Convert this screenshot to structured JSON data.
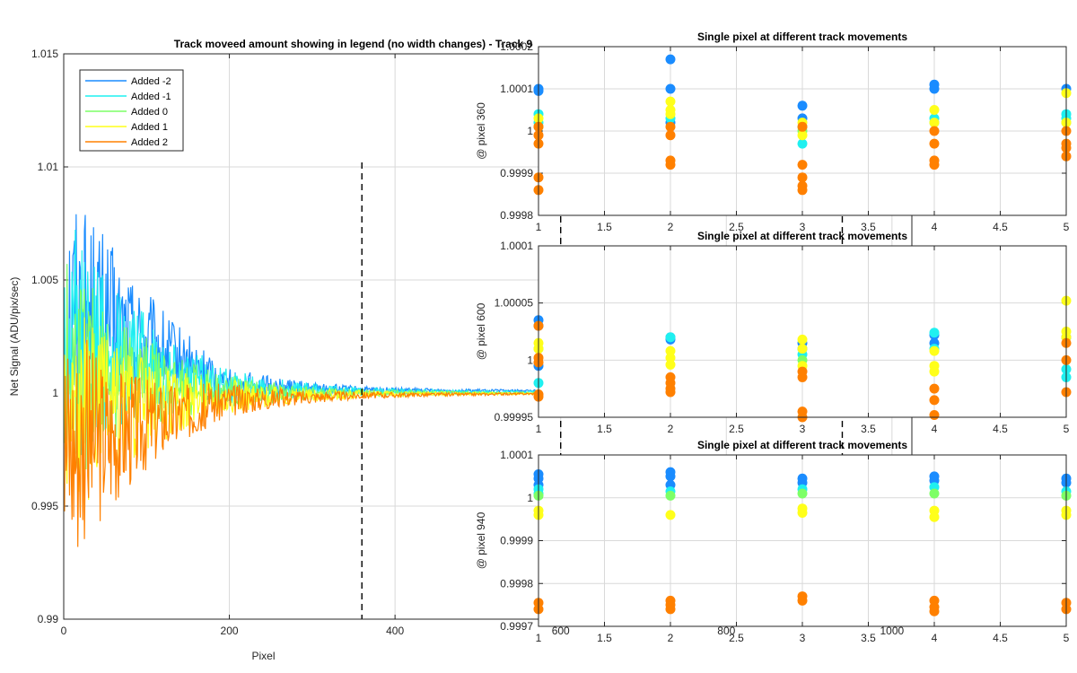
{
  "colors": {
    "added_m2": "#1a8cff",
    "added_m1": "#1ff0f0",
    "added_0": "#7dff66",
    "added_1": "#ffff1a",
    "added_2": "#ff8000",
    "grid": "#d9d9d9",
    "dash": "#000000"
  },
  "chart_data": [
    {
      "type": "line",
      "title": "Track moveed amount showing in legend (no width changes) - Track 9",
      "xlabel": "Pixel",
      "ylabel": "Net Signal (ADU/pix/sec)",
      "xlim": [
        0,
        1024
      ],
      "ylim": [
        0.99,
        1.015
      ],
      "xticks": [
        0,
        200,
        400,
        600,
        800,
        1000
      ],
      "yticks": [
        0.99,
        0.995,
        1,
        1.005,
        1.01,
        1.015
      ],
      "ytick_labels": [
        "0.99",
        "0.995",
        "1",
        "1.005",
        "1.01",
        "1.015"
      ],
      "grid": true,
      "legend_position": "top-left",
      "vertical_dashed_lines_x": [
        360,
        600,
        940
      ],
      "series": [
        {
          "name": "Added -2",
          "color_key": "added_m2",
          "noise_start": 0.0065,
          "decay": 95,
          "tail": [
            [
              30,
              0.0035
            ],
            [
              200,
              0.0003
            ],
            [
              360,
              0.00012
            ],
            [
              600,
              0.0001
            ],
            [
              860,
              5e-05
            ],
            [
              940,
              4e-05
            ],
            [
              1000,
              0.0
            ],
            [
              1024,
              -0.0001
            ]
          ]
        },
        {
          "name": "Added -1",
          "color_key": "added_m1",
          "noise_start": 0.006,
          "decay": 100,
          "tail": [
            [
              30,
              0.002
            ],
            [
              200,
              0.0002
            ],
            [
              360,
              6e-05
            ],
            [
              600,
              5e-05
            ],
            [
              860,
              3e-05
            ],
            [
              940,
              2e-05
            ],
            [
              1000,
              0.0
            ],
            [
              1024,
              0.0
            ]
          ]
        },
        {
          "name": "Added 0",
          "color_key": "added_0",
          "noise_start": 0.0055,
          "decay": 100,
          "tail": [
            [
              30,
              0.0008
            ],
            [
              200,
              0.0
            ],
            [
              360,
              0.0
            ],
            [
              600,
              0.0
            ],
            [
              860,
              0.0
            ],
            [
              940,
              0.0
            ],
            [
              1000,
              0.0
            ],
            [
              1024,
              0.0
            ]
          ]
        },
        {
          "name": "Added 1",
          "color_key": "added_1",
          "noise_start": 0.0055,
          "decay": 100,
          "tail": [
            [
              30,
              -0.0008
            ],
            [
              200,
              -0.00015
            ],
            [
              360,
              -5e-05
            ],
            [
              600,
              -1e-05
            ],
            [
              860,
              -0.0001
            ],
            [
              940,
              -0.0002
            ],
            [
              1000,
              -0.0001
            ],
            [
              1024,
              0.0
            ]
          ]
        },
        {
          "name": "Added 2",
          "color_key": "added_2",
          "noise_start": 0.006,
          "decay": 95,
          "tail": [
            [
              30,
              -0.002
            ],
            [
              200,
              -0.0003
            ],
            [
              360,
              -0.0001
            ],
            [
              600,
              -2e-05
            ],
            [
              860,
              -0.00018
            ],
            [
              940,
              -0.00035
            ],
            [
              1000,
              -0.0002
            ],
            [
              1024,
              0.0002
            ]
          ]
        }
      ]
    },
    {
      "type": "scatter",
      "title": "Single pixel at different track movements",
      "ylabel": "@ pixel 360",
      "xlim": [
        1,
        5
      ],
      "ylim": [
        0.9998,
        1.0002
      ],
      "xticks": [
        1,
        1.5,
        2,
        2.5,
        3,
        3.5,
        4,
        4.5,
        5
      ],
      "yticks": [
        0.9998,
        0.9999,
        1,
        1.0001,
        1.0002
      ],
      "ytick_labels": [
        "0.9998",
        "0.9999",
        "1",
        "1.0001",
        "1.0002"
      ],
      "grid": true,
      "points": [
        {
          "x": 1,
          "y": 1.0001,
          "c": "added_m2"
        },
        {
          "x": 1,
          "y": 1.000095,
          "c": "added_m2"
        },
        {
          "x": 1,
          "y": 1.00004,
          "c": "added_m1"
        },
        {
          "x": 1,
          "y": 1.00002,
          "c": "added_m1"
        },
        {
          "x": 1,
          "y": 1.00001,
          "c": "added_0"
        },
        {
          "x": 1,
          "y": 1.00003,
          "c": "added_1"
        },
        {
          "x": 1,
          "y": 1.00001,
          "c": "added_2"
        },
        {
          "x": 1,
          "y": 0.99999,
          "c": "added_2"
        },
        {
          "x": 1,
          "y": 0.99997,
          "c": "added_2"
        },
        {
          "x": 1,
          "y": 0.99989,
          "c": "added_2"
        },
        {
          "x": 1,
          "y": 0.99986,
          "c": "added_2"
        },
        {
          "x": 2,
          "y": 1.00017,
          "c": "added_m2"
        },
        {
          "x": 2,
          "y": 1.0001,
          "c": "added_m2"
        },
        {
          "x": 2,
          "y": 1.00002,
          "c": "added_m2"
        },
        {
          "x": 2,
          "y": 1.00003,
          "c": "added_m1"
        },
        {
          "x": 2,
          "y": 1.00005,
          "c": "added_1"
        },
        {
          "x": 2,
          "y": 1.00007,
          "c": "added_1"
        },
        {
          "x": 2,
          "y": 1.00004,
          "c": "added_1"
        },
        {
          "x": 2,
          "y": 1.00001,
          "c": "added_2"
        },
        {
          "x": 2,
          "y": 0.99999,
          "c": "added_2"
        },
        {
          "x": 2,
          "y": 0.99993,
          "c": "added_2"
        },
        {
          "x": 2,
          "y": 0.99992,
          "c": "added_2"
        },
        {
          "x": 3,
          "y": 1.00006,
          "c": "added_m2"
        },
        {
          "x": 3,
          "y": 1.00003,
          "c": "added_m2"
        },
        {
          "x": 3,
          "y": 1.00001,
          "c": "added_m1"
        },
        {
          "x": 3,
          "y": 0.99997,
          "c": "added_m1"
        },
        {
          "x": 3,
          "y": 1.0,
          "c": "added_0"
        },
        {
          "x": 3,
          "y": 0.99999,
          "c": "added_1"
        },
        {
          "x": 3,
          "y": 1.00002,
          "c": "added_1"
        },
        {
          "x": 3,
          "y": 1.00001,
          "c": "added_2"
        },
        {
          "x": 3,
          "y": 0.99992,
          "c": "added_2"
        },
        {
          "x": 3,
          "y": 0.99989,
          "c": "added_2"
        },
        {
          "x": 3,
          "y": 0.99987,
          "c": "added_2"
        },
        {
          "x": 3,
          "y": 0.99986,
          "c": "added_2"
        },
        {
          "x": 4,
          "y": 1.00011,
          "c": "added_m2"
        },
        {
          "x": 4,
          "y": 1.0001,
          "c": "added_m2"
        },
        {
          "x": 4,
          "y": 1.00003,
          "c": "added_m1"
        },
        {
          "x": 4,
          "y": 1.00002,
          "c": "added_m1"
        },
        {
          "x": 4,
          "y": 1.00005,
          "c": "added_1"
        },
        {
          "x": 4,
          "y": 1.00002,
          "c": "added_1"
        },
        {
          "x": 4,
          "y": 1.0,
          "c": "added_2"
        },
        {
          "x": 4,
          "y": 0.99997,
          "c": "added_2"
        },
        {
          "x": 4,
          "y": 0.99993,
          "c": "added_2"
        },
        {
          "x": 4,
          "y": 0.99992,
          "c": "added_2"
        },
        {
          "x": 5,
          "y": 1.0001,
          "c": "added_m2"
        },
        {
          "x": 5,
          "y": 1.00004,
          "c": "added_m1"
        },
        {
          "x": 5,
          "y": 1.00003,
          "c": "added_m1"
        },
        {
          "x": 5,
          "y": 1.00002,
          "c": "added_0"
        },
        {
          "x": 5,
          "y": 1.00009,
          "c": "added_1"
        },
        {
          "x": 5,
          "y": 1.00002,
          "c": "added_1"
        },
        {
          "x": 5,
          "y": 1.0,
          "c": "added_2"
        },
        {
          "x": 5,
          "y": 0.99997,
          "c": "added_2"
        },
        {
          "x": 5,
          "y": 0.99996,
          "c": "added_2"
        },
        {
          "x": 5,
          "y": 0.99994,
          "c": "added_2"
        }
      ]
    },
    {
      "type": "scatter",
      "title": "Single pixel at different track movements",
      "ylabel": "@ pixel 600",
      "xlim": [
        1,
        5
      ],
      "ylim": [
        0.99995,
        1.0001
      ],
      "xticks": [
        1,
        1.5,
        2,
        2.5,
        3,
        3.5,
        4,
        4.5,
        5
      ],
      "yticks": [
        0.99995,
        1,
        1.00005,
        1.0001
      ],
      "ytick_labels": [
        "0.99995",
        "1",
        "1.00005",
        "1.0001"
      ],
      "grid": true,
      "points": [
        {
          "x": 1,
          "y": 1.000035,
          "c": "added_m2"
        },
        {
          "x": 1,
          "y": 1.00003,
          "c": "added_m2"
        },
        {
          "x": 1,
          "y": 0.999995,
          "c": "added_m2"
        },
        {
          "x": 1,
          "y": 0.99998,
          "c": "added_m1"
        },
        {
          "x": 1,
          "y": 1.00001,
          "c": "added_0"
        },
        {
          "x": 1,
          "y": 1.000015,
          "c": "added_1"
        },
        {
          "x": 1,
          "y": 1.00001,
          "c": "added_1"
        },
        {
          "x": 1,
          "y": 1.00003,
          "c": "added_2"
        },
        {
          "x": 1,
          "y": 1.000002,
          "c": "added_2"
        },
        {
          "x": 1,
          "y": 0.999998,
          "c": "added_2"
        },
        {
          "x": 1,
          "y": 0.99997,
          "c": "added_2"
        },
        {
          "x": 1,
          "y": 0.999968,
          "c": "added_2"
        },
        {
          "x": 2,
          "y": 1.00002,
          "c": "added_m2"
        },
        {
          "x": 2,
          "y": 1.000018,
          "c": "added_m2"
        },
        {
          "x": 2,
          "y": 1.00002,
          "c": "added_m1"
        },
        {
          "x": 2,
          "y": 1.000008,
          "c": "added_1"
        },
        {
          "x": 2,
          "y": 1.000002,
          "c": "added_1"
        },
        {
          "x": 2,
          "y": 0.999996,
          "c": "added_1"
        },
        {
          "x": 2,
          "y": 0.999985,
          "c": "added_2"
        },
        {
          "x": 2,
          "y": 0.99998,
          "c": "added_2"
        },
        {
          "x": 2,
          "y": 0.999975,
          "c": "added_2"
        },
        {
          "x": 2,
          "y": 0.999972,
          "c": "added_2"
        },
        {
          "x": 3,
          "y": 1.000015,
          "c": "added_m2"
        },
        {
          "x": 3,
          "y": 1.00001,
          "c": "added_m2"
        },
        {
          "x": 3,
          "y": 1.000005,
          "c": "added_m1"
        },
        {
          "x": 3,
          "y": 1.0,
          "c": "added_0"
        },
        {
          "x": 3,
          "y": 1.000018,
          "c": "added_1"
        },
        {
          "x": 3,
          "y": 1.00001,
          "c": "added_1"
        },
        {
          "x": 3,
          "y": 0.999995,
          "c": "added_1"
        },
        {
          "x": 3,
          "y": 0.99999,
          "c": "added_2"
        },
        {
          "x": 3,
          "y": 0.999985,
          "c": "added_2"
        },
        {
          "x": 3,
          "y": 0.999955,
          "c": "added_2"
        },
        {
          "x": 3,
          "y": 0.99995,
          "c": "added_2"
        },
        {
          "x": 4,
          "y": 1.000022,
          "c": "added_m2"
        },
        {
          "x": 4,
          "y": 1.000015,
          "c": "added_m2"
        },
        {
          "x": 4,
          "y": 1.000024,
          "c": "added_m1"
        },
        {
          "x": 4,
          "y": 1.00001,
          "c": "added_m1"
        },
        {
          "x": 4,
          "y": 1.000008,
          "c": "added_1"
        },
        {
          "x": 4,
          "y": 0.999995,
          "c": "added_1"
        },
        {
          "x": 4,
          "y": 0.99999,
          "c": "added_1"
        },
        {
          "x": 4,
          "y": 0.999975,
          "c": "added_2"
        },
        {
          "x": 4,
          "y": 0.999965,
          "c": "added_2"
        },
        {
          "x": 4,
          "y": 0.999952,
          "c": "added_2"
        },
        {
          "x": 5,
          "y": 1.00002,
          "c": "added_m2"
        },
        {
          "x": 5,
          "y": 0.999992,
          "c": "added_m1"
        },
        {
          "x": 5,
          "y": 0.999985,
          "c": "added_m1"
        },
        {
          "x": 5,
          "y": 1.000052,
          "c": "added_1"
        },
        {
          "x": 5,
          "y": 1.000025,
          "c": "added_1"
        },
        {
          "x": 5,
          "y": 1.00002,
          "c": "added_1"
        },
        {
          "x": 5,
          "y": 1.000015,
          "c": "added_2"
        },
        {
          "x": 5,
          "y": 1.0,
          "c": "added_2"
        },
        {
          "x": 5,
          "y": 0.999972,
          "c": "added_2"
        }
      ]
    },
    {
      "type": "scatter",
      "title": "Single pixel at different track movements",
      "ylabel": "@ pixel 940",
      "xlim": [
        1,
        5
      ],
      "ylim": [
        0.9997,
        1.0001
      ],
      "xticks": [
        1,
        1.5,
        2,
        2.5,
        3,
        3.5,
        4,
        4.5,
        5
      ],
      "yticks": [
        0.9997,
        0.9998,
        0.9999,
        1,
        1.0001
      ],
      "ytick_labels": [
        "0.9997",
        "0.9998",
        "0.9999",
        "1",
        "1.0001"
      ],
      "grid": true,
      "points": [
        {
          "x": 1,
          "y": 1.000055,
          "c": "added_m2"
        },
        {
          "x": 1,
          "y": 1.000045,
          "c": "added_m2"
        },
        {
          "x": 1,
          "y": 1.00003,
          "c": "added_m2"
        },
        {
          "x": 1,
          "y": 1.00002,
          "c": "added_m1"
        },
        {
          "x": 1,
          "y": 1.00001,
          "c": "added_m1"
        },
        {
          "x": 1,
          "y": 1.000005,
          "c": "added_0"
        },
        {
          "x": 1,
          "y": 0.99997,
          "c": "added_1"
        },
        {
          "x": 1,
          "y": 0.99996,
          "c": "added_1"
        },
        {
          "x": 1,
          "y": 0.999755,
          "c": "added_2"
        },
        {
          "x": 1,
          "y": 0.99974,
          "c": "added_2"
        },
        {
          "x": 2,
          "y": 1.00006,
          "c": "added_m2"
        },
        {
          "x": 2,
          "y": 1.00005,
          "c": "added_m2"
        },
        {
          "x": 2,
          "y": 1.00003,
          "c": "added_m2"
        },
        {
          "x": 2,
          "y": 1.000015,
          "c": "added_m1"
        },
        {
          "x": 2,
          "y": 1.000005,
          "c": "added_0"
        },
        {
          "x": 2,
          "y": 0.99996,
          "c": "added_1"
        },
        {
          "x": 2,
          "y": 0.99976,
          "c": "added_2"
        },
        {
          "x": 2,
          "y": 0.99975,
          "c": "added_2"
        },
        {
          "x": 2,
          "y": 0.99974,
          "c": "added_2"
        },
        {
          "x": 3,
          "y": 1.000045,
          "c": "added_m2"
        },
        {
          "x": 3,
          "y": 1.000035,
          "c": "added_m2"
        },
        {
          "x": 3,
          "y": 1.00002,
          "c": "added_m1"
        },
        {
          "x": 3,
          "y": 1.00001,
          "c": "added_0"
        },
        {
          "x": 3,
          "y": 0.999975,
          "c": "added_1"
        },
        {
          "x": 3,
          "y": 0.999965,
          "c": "added_1"
        },
        {
          "x": 3,
          "y": 0.99977,
          "c": "added_2"
        },
        {
          "x": 3,
          "y": 0.99976,
          "c": "added_2"
        },
        {
          "x": 4,
          "y": 1.00005,
          "c": "added_m2"
        },
        {
          "x": 4,
          "y": 1.00004,
          "c": "added_m2"
        },
        {
          "x": 4,
          "y": 1.000025,
          "c": "added_m1"
        },
        {
          "x": 4,
          "y": 1.00001,
          "c": "added_0"
        },
        {
          "x": 4,
          "y": 0.99997,
          "c": "added_1"
        },
        {
          "x": 4,
          "y": 0.999955,
          "c": "added_1"
        },
        {
          "x": 4,
          "y": 0.99976,
          "c": "added_2"
        },
        {
          "x": 4,
          "y": 0.999745,
          "c": "added_2"
        },
        {
          "x": 4,
          "y": 0.999735,
          "c": "added_2"
        },
        {
          "x": 5,
          "y": 1.000045,
          "c": "added_m2"
        },
        {
          "x": 5,
          "y": 1.000035,
          "c": "added_m2"
        },
        {
          "x": 5,
          "y": 1.000015,
          "c": "added_m1"
        },
        {
          "x": 5,
          "y": 1.000005,
          "c": "added_0"
        },
        {
          "x": 5,
          "y": 0.99997,
          "c": "added_1"
        },
        {
          "x": 5,
          "y": 0.99996,
          "c": "added_1"
        },
        {
          "x": 5,
          "y": 0.999755,
          "c": "added_2"
        },
        {
          "x": 5,
          "y": 0.99974,
          "c": "added_2"
        }
      ]
    }
  ]
}
